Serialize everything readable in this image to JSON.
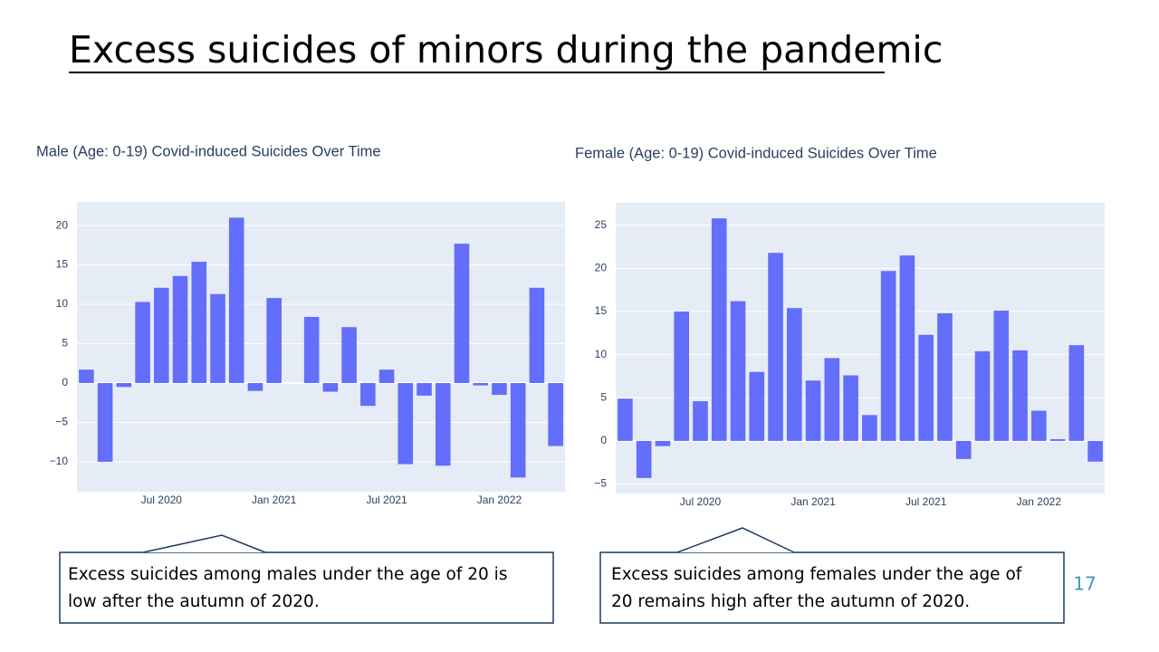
{
  "title": "Excess suicides of minors during the pandemic",
  "callouts": [
    {
      "lines": [
        "Excess suicides among males under the age of 20 is",
        "low after the autumn of 2020."
      ]
    },
    {
      "lines": [
        "Excess suicides among females under the age of",
        "20 remains high after the autumn of 2020."
      ]
    }
  ],
  "page_number": "17",
  "chart_data": [
    {
      "type": "bar",
      "title": "Male (Age: 0-19) Covid-induced Suicides Over Time",
      "color": "#636efa",
      "grid": true,
      "x": [
        "2020-03",
        "2020-04",
        "2020-05",
        "2020-06",
        "2020-07",
        "2020-08",
        "2020-09",
        "2020-10",
        "2020-11",
        "2020-12",
        "2021-01",
        "2021-02",
        "2021-03",
        "2021-04",
        "2021-05",
        "2021-06",
        "2021-07",
        "2021-08",
        "2021-09",
        "2021-10",
        "2021-11",
        "2021-12",
        "2022-01",
        "2022-02",
        "2022-03",
        "2022-04"
      ],
      "values": [
        1.7,
        -10,
        -0.5,
        10.3,
        12.1,
        13.6,
        15.4,
        11.3,
        21.0,
        -1,
        10.8,
        0,
        8.4,
        -1.1,
        7.1,
        -2.9,
        1.7,
        -10.3,
        -1.6,
        -10.5,
        17.7,
        -0.3,
        -1.5,
        -12,
        12.1,
        -8.0
      ],
      "xticks": [
        {
          "value": "2020-07",
          "label": "Jul 2020"
        },
        {
          "value": "2021-01",
          "label": "Jan 2021"
        },
        {
          "value": "2021-07",
          "label": "Jul 2021"
        },
        {
          "value": "2022-01",
          "label": "Jan 2022"
        }
      ],
      "ylim": [
        -13.8,
        23
      ],
      "yticks": [
        {
          "value": -10,
          "label": "−10"
        },
        {
          "value": -5,
          "label": "−5"
        },
        0,
        5,
        10,
        15,
        20
      ]
    },
    {
      "type": "bar",
      "title": "Female (Age: 0-19) Covid-induced Suicides Over Time",
      "color": "#636efa",
      "grid": true,
      "x": [
        "2020-03",
        "2020-04",
        "2020-05",
        "2020-06",
        "2020-07",
        "2020-08",
        "2020-09",
        "2020-10",
        "2020-11",
        "2020-12",
        "2021-01",
        "2021-02",
        "2021-03",
        "2021-04",
        "2021-05",
        "2021-06",
        "2021-07",
        "2021-08",
        "2021-09",
        "2021-10",
        "2021-11",
        "2021-12",
        "2022-01",
        "2022-02",
        "2022-03",
        "2022-04"
      ],
      "values": [
        4.9,
        -4.3,
        -0.6,
        15.0,
        4.6,
        25.8,
        16.2,
        8.0,
        21.8,
        15.4,
        7.0,
        9.6,
        7.6,
        3.0,
        19.7,
        21.5,
        12.3,
        14.8,
        -2.1,
        10.4,
        15.1,
        10.5,
        3.5,
        0.2,
        11.1,
        -2.4
      ],
      "xticks": [
        {
          "value": "2020-07",
          "label": "Jul 2020"
        },
        {
          "value": "2021-01",
          "label": "Jan 2021"
        },
        {
          "value": "2021-07",
          "label": "Jul 2021"
        },
        {
          "value": "2022-01",
          "label": "Jan 2022"
        }
      ],
      "ylim": [
        -6.1,
        27.6
      ],
      "yticks": [
        {
          "value": -5,
          "label": "−5"
        },
        0,
        5,
        10,
        15,
        20,
        25
      ]
    }
  ]
}
